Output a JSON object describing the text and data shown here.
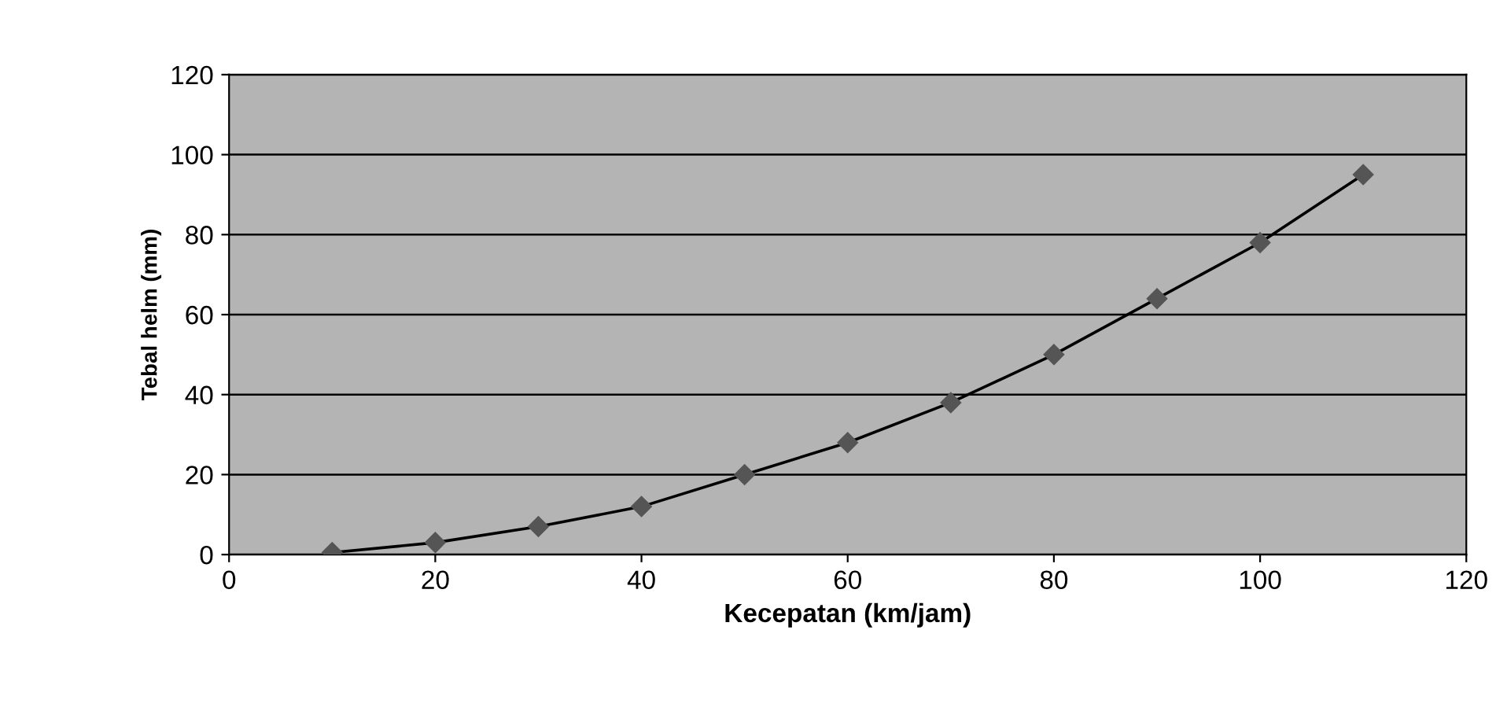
{
  "chart_data": {
    "type": "line",
    "xlabel": "Kecepatan (km/jam)",
    "ylabel": "Tebal helm (mm)",
    "x": [
      10,
      20,
      30,
      40,
      50,
      60,
      70,
      80,
      90,
      100,
      110
    ],
    "series": [
      {
        "color": "#555555",
        "values": [
          0.5,
          3,
          7,
          12,
          20,
          28,
          38,
          50,
          64,
          78,
          95
        ]
      }
    ],
    "xlim": [
      0,
      120
    ],
    "xticks": [
      0,
      20,
      40,
      60,
      80,
      100,
      120
    ],
    "ylim": [
      0,
      120
    ],
    "yticks": [
      0,
      20,
      40,
      60,
      80,
      100,
      120
    ],
    "grid": "y",
    "marker": "diamond",
    "line_style": "solid",
    "legend": false
  }
}
